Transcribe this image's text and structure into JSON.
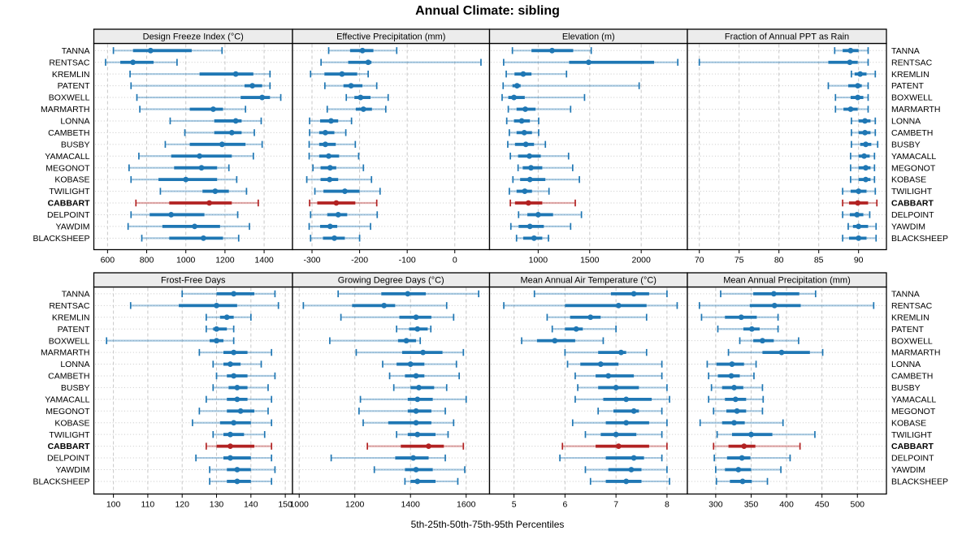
{
  "header": {
    "title": "Annual Climate: sibling"
  },
  "footer": {
    "caption": "5th-25th-50th-75th-95th Percentiles"
  },
  "chart_data": {
    "type": "trellis-dotplot",
    "title": "Annual Climate: sibling",
    "caption": "5th-25th-50th-75th-95th Percentiles",
    "percentile_labels": [
      "5th",
      "25th",
      "50th",
      "75th",
      "95th"
    ],
    "sites": [
      "TANNA",
      "RENTSAC",
      "KREMLIN",
      "PATENT",
      "BOXWELL",
      "MARMARTH",
      "LONNA",
      "CAMBETH",
      "BUSBY",
      "YAMACALL",
      "MEGONOT",
      "KOBASE",
      "TWILIGHT",
      "CABBART",
      "DELPOINT",
      "YAWDIM",
      "BLACKSHEEP"
    ],
    "highlight_site": "CABBART",
    "colors": {
      "series": "#1f77b4",
      "highlight": "#b22222",
      "grid": "#c8c8c8",
      "strip_bg": "#ececec",
      "border": "#000000"
    },
    "layout_hints": {
      "grid": "2 rows x 4 cols",
      "gridlines": "dashed-vertical",
      "row_guides": "dotted-horizontal"
    },
    "panels": [
      {
        "title": "Design Freeze Index (°C)",
        "grid_pos": [
          0,
          0
        ],
        "ticks": [
          600,
          800,
          1000,
          1200,
          1400
        ],
        "xlim": [
          530,
          1545
        ],
        "values": [
          [
            630,
            730,
            820,
            1030,
            1185
          ],
          [
            590,
            665,
            730,
            835,
            955
          ],
          [
            715,
            1070,
            1255,
            1345,
            1430
          ],
          [
            720,
            1300,
            1340,
            1390,
            1430
          ],
          [
            750,
            1280,
            1390,
            1430,
            1485
          ],
          [
            765,
            1020,
            1140,
            1190,
            1305
          ],
          [
            920,
            1145,
            1255,
            1285,
            1385
          ],
          [
            995,
            1145,
            1235,
            1285,
            1350
          ],
          [
            895,
            1020,
            1185,
            1305,
            1390
          ],
          [
            760,
            925,
            1070,
            1235,
            1345
          ],
          [
            710,
            940,
            1080,
            1160,
            1220
          ],
          [
            720,
            860,
            1000,
            1160,
            1260
          ],
          [
            870,
            1085,
            1150,
            1220,
            1310
          ],
          [
            745,
            915,
            1120,
            1235,
            1370
          ],
          [
            720,
            815,
            925,
            1095,
            1265
          ],
          [
            705,
            880,
            1045,
            1175,
            1325
          ],
          [
            775,
            915,
            1090,
            1190,
            1270
          ]
        ]
      },
      {
        "title": "Effective Precipitation (mm)",
        "grid_pos": [
          0,
          1
        ],
        "ticks": [
          -300,
          -200,
          -100,
          0
        ],
        "xlim": [
          -341,
          73
        ],
        "values": [
          [
            -265,
            -220,
            -194,
            -171,
            -122
          ],
          [
            -281,
            -224,
            -182,
            -175,
            55
          ],
          [
            -303,
            -274,
            -237,
            -205,
            -182
          ],
          [
            -273,
            -234,
            -218,
            -194,
            -164
          ],
          [
            -228,
            -211,
            -198,
            -177,
            -140
          ],
          [
            -268,
            -208,
            -192,
            -174,
            -145
          ],
          [
            -305,
            -283,
            -260,
            -245,
            -217
          ],
          [
            -305,
            -285,
            -272,
            -253,
            -229
          ],
          [
            -306,
            -285,
            -272,
            -250,
            -209
          ],
          [
            -306,
            -285,
            -265,
            -243,
            -202
          ],
          [
            -298,
            -282,
            -262,
            -249,
            -192
          ],
          [
            -311,
            -282,
            -263,
            -245,
            -175
          ],
          [
            -294,
            -276,
            -231,
            -200,
            -157
          ],
          [
            -305,
            -289,
            -249,
            -209,
            -164
          ],
          [
            -303,
            -268,
            -245,
            -226,
            -163
          ],
          [
            -306,
            -283,
            -262,
            -247,
            -177
          ],
          [
            -303,
            -277,
            -253,
            -231,
            -200
          ]
        ]
      },
      {
        "title": "Elevation (m)",
        "grid_pos": [
          0,
          2
        ],
        "ticks": [
          1000,
          1500,
          2000
        ],
        "xlim": [
          528,
          2448
        ],
        "values": [
          [
            750,
            935,
            1135,
            1340,
            1515
          ],
          [
            665,
            1300,
            1490,
            2125,
            2355
          ],
          [
            690,
            770,
            855,
            935,
            1275
          ],
          [
            660,
            750,
            795,
            830,
            1980
          ],
          [
            650,
            710,
            765,
            870,
            1450
          ],
          [
            710,
            790,
            875,
            975,
            1315
          ],
          [
            695,
            765,
            840,
            920,
            1005
          ],
          [
            720,
            790,
            865,
            940,
            1005
          ],
          [
            705,
            775,
            880,
            960,
            1070
          ],
          [
            730,
            805,
            915,
            1025,
            1295
          ],
          [
            805,
            850,
            930,
            1040,
            1335
          ],
          [
            755,
            825,
            920,
            1070,
            1400
          ],
          [
            720,
            790,
            870,
            940,
            1105
          ],
          [
            730,
            775,
            905,
            1040,
            1360
          ],
          [
            810,
            895,
            1000,
            1145,
            1420
          ],
          [
            735,
            810,
            920,
            1055,
            1315
          ],
          [
            790,
            855,
            960,
            1040,
            1100
          ]
        ]
      },
      {
        "title": "Fraction of Annual PPT as Rain",
        "grid_pos": [
          0,
          3
        ],
        "ticks": [
          70,
          75,
          80,
          85,
          90
        ],
        "xlim": [
          68.5,
          93.5
        ],
        "values": [
          [
            87,
            88,
            89,
            90,
            91.2
          ],
          [
            70,
            86.2,
            88.9,
            89.9,
            91.2
          ],
          [
            89.1,
            89.5,
            90.2,
            91,
            92.1
          ],
          [
            86.2,
            88.7,
            89.9,
            90.4,
            91.2
          ],
          [
            87.1,
            89,
            89.9,
            90.6,
            91.2
          ],
          [
            87.1,
            88.1,
            89,
            89.9,
            91.2
          ],
          [
            89.1,
            90,
            90.8,
            91.5,
            92.1
          ],
          [
            89.1,
            90,
            90.8,
            91.5,
            92.1
          ],
          [
            89.1,
            90.2,
            90.9,
            91.6,
            92.4
          ],
          [
            89,
            90,
            90.7,
            91.4,
            92
          ],
          [
            89,
            90,
            90.9,
            91.5,
            92
          ],
          [
            89,
            90,
            90.9,
            91.5,
            92
          ],
          [
            88,
            89,
            90,
            91,
            92.1
          ],
          [
            88,
            88.8,
            89.9,
            91.2,
            92.3
          ],
          [
            88,
            88.9,
            89.8,
            90.6,
            91.4
          ],
          [
            88.7,
            89.3,
            90,
            91.2,
            92.2
          ],
          [
            88,
            88.8,
            90,
            91,
            92.2
          ]
        ]
      },
      {
        "title": "Frost-Free Days",
        "grid_pos": [
          1,
          0
        ],
        "ticks": [
          100,
          110,
          120,
          130,
          140,
          150
        ],
        "xlim": [
          94.3,
          152.1
        ],
        "values": [
          [
            120,
            130,
            135,
            141,
            147
          ],
          [
            105,
            119,
            130,
            136,
            148
          ],
          [
            127,
            131,
            133,
            135,
            140
          ],
          [
            127,
            129,
            130,
            133,
            135
          ],
          [
            98,
            128,
            130,
            132,
            135
          ],
          [
            125,
            132,
            135,
            139,
            146
          ],
          [
            129,
            132,
            134,
            137,
            143
          ],
          [
            130,
            133,
            135,
            139,
            147
          ],
          [
            129,
            133.5,
            136,
            139,
            145
          ],
          [
            127,
            133,
            136,
            139,
            146
          ],
          [
            125,
            133,
            137,
            141,
            145
          ],
          [
            123,
            131,
            135,
            140,
            146
          ],
          [
            129,
            132,
            134,
            138,
            144
          ],
          [
            127,
            130,
            134,
            141,
            146
          ],
          [
            124,
            132,
            134,
            140,
            146
          ],
          [
            128,
            133,
            136,
            140,
            147
          ],
          [
            128,
            133,
            136,
            140,
            146
          ]
        ]
      },
      {
        "title": "Growing Degree Days (°C)",
        "grid_pos": [
          1,
          1
        ],
        "ticks": [
          1000,
          1200,
          1400,
          1600
        ],
        "xlim": [
          976,
          1684
        ],
        "values": [
          [
            1140,
            1295,
            1390,
            1455,
            1645
          ],
          [
            1015,
            1190,
            1305,
            1345,
            1530
          ],
          [
            1150,
            1360,
            1420,
            1475,
            1555
          ],
          [
            1350,
            1395,
            1425,
            1462,
            1473
          ],
          [
            1110,
            1355,
            1385,
            1420,
            1435
          ],
          [
            1205,
            1370,
            1445,
            1515,
            1590
          ],
          [
            1300,
            1350,
            1400,
            1450,
            1565
          ],
          [
            1325,
            1380,
            1420,
            1450,
            1575
          ],
          [
            1340,
            1400,
            1430,
            1485,
            1530
          ],
          [
            1220,
            1390,
            1425,
            1480,
            1600
          ],
          [
            1215,
            1390,
            1420,
            1475,
            1525
          ],
          [
            1230,
            1320,
            1420,
            1475,
            1555
          ],
          [
            1350,
            1390,
            1425,
            1490,
            1535
          ],
          [
            1245,
            1365,
            1465,
            1520,
            1590
          ],
          [
            1115,
            1345,
            1410,
            1465,
            1525
          ],
          [
            1270,
            1380,
            1420,
            1480,
            1595
          ],
          [
            1380,
            1400,
            1425,
            1490,
            1570
          ]
        ]
      },
      {
        "title": "Mean Annual Air Temperature (°C)",
        "grid_pos": [
          1,
          2
        ],
        "ticks": [
          5,
          6,
          7,
          8
        ],
        "xlim": [
          4.52,
          8.4
        ],
        "values": [
          [
            5.4,
            6.9,
            7.35,
            7.65,
            8.0
          ],
          [
            4.8,
            6.0,
            7.05,
            7.6,
            8.2
          ],
          [
            5.65,
            6.1,
            6.5,
            6.7,
            7.6
          ],
          [
            5.75,
            6.0,
            6.22,
            6.35,
            7.0
          ],
          [
            5.15,
            5.45,
            5.8,
            6.2,
            6.75
          ],
          [
            6.0,
            6.65,
            7.1,
            7.2,
            7.6
          ],
          [
            6.05,
            6.3,
            6.7,
            7.05,
            7.9
          ],
          [
            6.2,
            6.6,
            6.85,
            7.35,
            7.9
          ],
          [
            6.25,
            6.65,
            7.0,
            7.45,
            8.0
          ],
          [
            6.2,
            6.75,
            7.2,
            7.7,
            8.05
          ],
          [
            6.65,
            6.95,
            7.35,
            7.45,
            7.9
          ],
          [
            6.15,
            6.8,
            7.2,
            7.65,
            8.0
          ],
          [
            6.4,
            6.7,
            7.0,
            7.4,
            7.9
          ],
          [
            5.95,
            6.6,
            7.05,
            7.65,
            8.0
          ],
          [
            5.9,
            6.8,
            7.35,
            7.55,
            7.9
          ],
          [
            6.4,
            6.85,
            7.3,
            7.5,
            8.0
          ],
          [
            6.5,
            6.8,
            7.2,
            7.5,
            8.05
          ]
        ]
      },
      {
        "title": "Mean Annual Precipitation (mm)",
        "grid_pos": [
          1,
          3
        ],
        "ticks": [
          300,
          350,
          400,
          450,
          500
        ],
        "xlim": [
          260,
          541
        ],
        "values": [
          [
            307,
            353,
            382,
            418,
            441
          ],
          [
            277,
            348,
            383,
            420,
            523
          ],
          [
            280,
            313,
            336,
            358,
            388
          ],
          [
            303,
            339,
            351,
            362,
            388
          ],
          [
            334,
            353,
            366,
            382,
            417
          ],
          [
            318,
            366,
            393,
            433,
            451
          ],
          [
            288,
            301,
            323,
            340,
            357
          ],
          [
            290,
            303,
            322,
            334,
            354
          ],
          [
            294,
            309,
            326,
            339,
            366
          ],
          [
            290,
            313,
            328,
            343,
            367
          ],
          [
            297,
            315,
            330,
            343,
            366
          ],
          [
            278,
            309,
            326,
            341,
            395
          ],
          [
            302,
            323,
            350,
            380,
            440
          ],
          [
            297,
            318,
            340,
            356,
            419
          ],
          [
            298,
            316,
            337,
            349,
            405
          ],
          [
            300,
            313,
            332,
            350,
            392
          ],
          [
            301,
            320,
            338,
            351,
            373
          ]
        ]
      }
    ]
  }
}
